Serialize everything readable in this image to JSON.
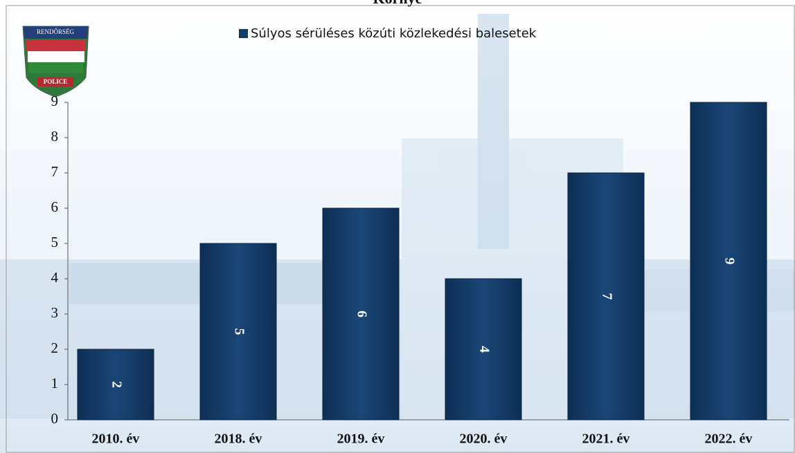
{
  "chart_data": {
    "type": "bar",
    "title": "Környe",
    "legend": "Súlyos sérüléses közúti közlekedési balesetek",
    "categories": [
      "2010. év",
      "2018. év",
      "2019. év",
      "2020. év",
      "2021. év",
      "2022. év"
    ],
    "values": [
      2,
      5,
      6,
      4,
      7,
      9
    ],
    "color": "#123a66",
    "ylim": [
      0,
      9
    ],
    "yticks": [
      0,
      1,
      2,
      3,
      4,
      5,
      6,
      7,
      8,
      9
    ],
    "grid": false
  },
  "logo": {
    "top": "RENDŐRSÉG",
    "bottom": "POLICE"
  }
}
